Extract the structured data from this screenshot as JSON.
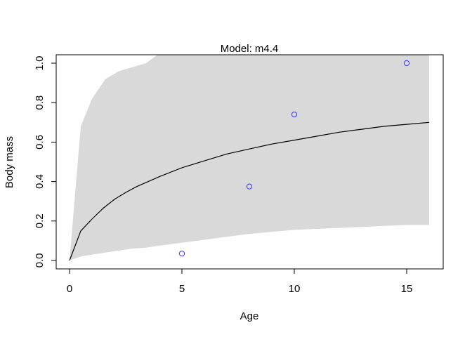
{
  "chart_data": {
    "type": "line",
    "title": "Model: m4.4",
    "xlabel": "Age",
    "ylabel": "Body mass",
    "xlim": [
      0,
      16
    ],
    "ylim": [
      0,
      1
    ],
    "x_ticks": [
      "0",
      "5",
      "10",
      "15"
    ],
    "y_ticks": [
      "0.0",
      "0.2",
      "0.4",
      "0.6",
      "0.8",
      "1.0"
    ],
    "grid": false,
    "band": {
      "x": [
        0,
        0.5,
        1.0,
        1.6,
        2.2,
        2.8,
        3.4,
        4.0,
        5.0,
        6.0,
        7.0,
        8.0,
        9.0,
        10.0,
        11.0,
        12.0,
        13.0,
        14.0,
        15.0,
        16.0
      ],
      "lower": [
        0,
        0.02,
        0.03,
        0.04,
        0.05,
        0.06,
        0.065,
        0.075,
        0.09,
        0.105,
        0.12,
        0.135,
        0.145,
        0.155,
        0.16,
        0.165,
        0.17,
        0.175,
        0.18,
        0.18
      ],
      "upper": [
        0,
        0.68,
        0.82,
        0.92,
        0.96,
        0.98,
        1.0,
        1.05,
        1.1,
        1.15,
        1.2,
        1.25,
        1.3,
        1.35,
        1.4,
        1.45,
        1.5,
        1.55,
        1.6,
        1.65
      ],
      "color": "#d9d9d9"
    },
    "series": [
      {
        "x": [
          0,
          0.5,
          1.0,
          1.5,
          2.0,
          2.5,
          3.0,
          3.5,
          4.0,
          5.0,
          6.0,
          7.0,
          8.0,
          9.0,
          10.0,
          11.0,
          12.0,
          13.0,
          14.0,
          15.0,
          16.0
        ],
        "y": [
          0,
          0.15,
          0.21,
          0.265,
          0.31,
          0.345,
          0.375,
          0.4,
          0.425,
          0.47,
          0.505,
          0.54,
          0.565,
          0.59,
          0.61,
          0.63,
          0.65,
          0.665,
          0.68,
          0.69,
          0.7
        ],
        "color": "#000000"
      }
    ],
    "points": {
      "x": [
        5,
        8,
        10,
        15
      ],
      "y": [
        0.035,
        0.375,
        0.74,
        1.0
      ],
      "color": "#3333ff"
    }
  }
}
